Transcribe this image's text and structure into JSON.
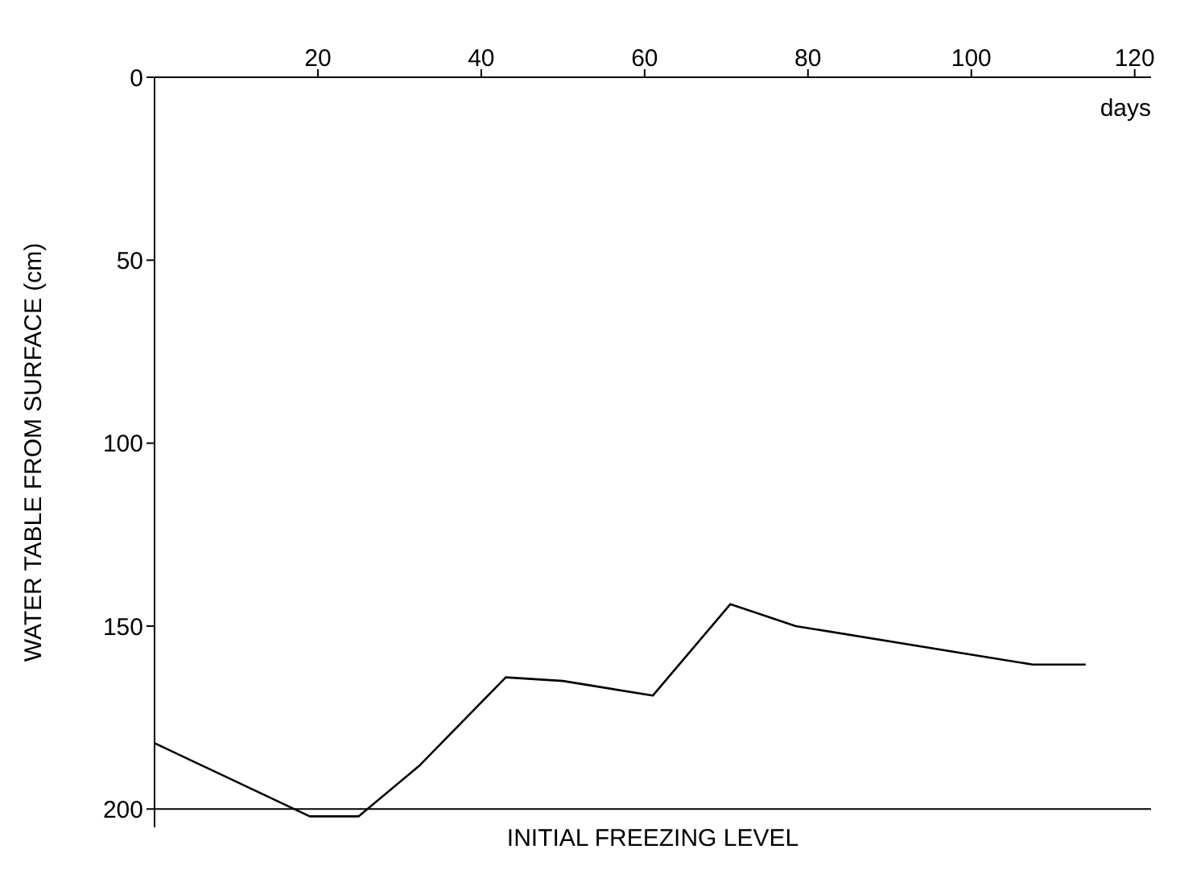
{
  "chart_data": {
    "type": "line",
    "xlabel": "days",
    "ylabel": "WATER TABLE FROM SURFACE (cm)",
    "x": [
      0,
      19,
      25,
      32.5,
      43,
      50,
      61,
      70.5,
      78.5,
      100.5,
      107.5,
      114
    ],
    "series": [
      {
        "color": "#000000",
        "values": [
          182,
          202,
          202,
          188,
          164,
          165,
          169,
          144,
          150,
          158,
          160.5,
          160.5
        ]
      }
    ],
    "xlim": [
      0,
      122
    ],
    "xticks": [
      20,
      40,
      60,
      80,
      100,
      120
    ],
    "ylim": [
      205,
      0
    ],
    "yticks": [
      0,
      50,
      100,
      150,
      200
    ],
    "ref_lines": [
      {
        "axis": "y",
        "value": 200,
        "label": "INITIAL FREEZING LEVEL",
        "color": "#000000"
      }
    ],
    "grid": false,
    "legend": false,
    "marker": "none",
    "line_style": "solid"
  }
}
